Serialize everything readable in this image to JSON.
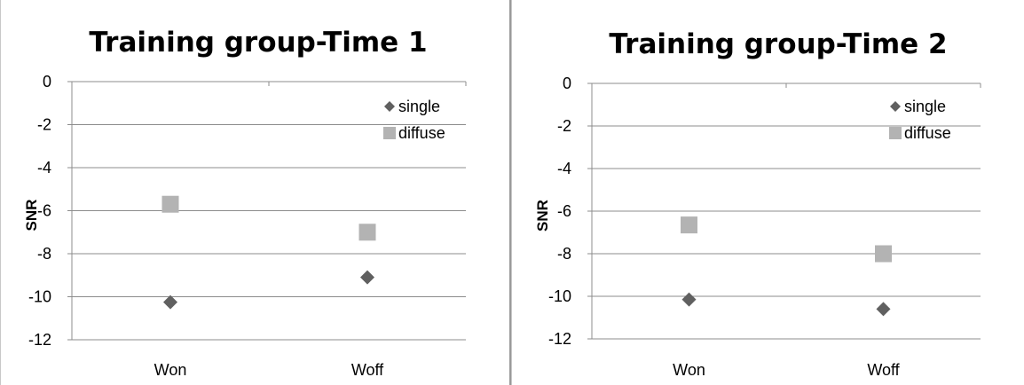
{
  "chart_data": [
    {
      "type": "scatter",
      "title": "Training group-Time 1",
      "ylabel": "SNR",
      "xlabel": "",
      "categories": [
        "Won",
        "Woff"
      ],
      "ylim": [
        -12,
        0
      ],
      "yticks": [
        0,
        -2,
        -4,
        -6,
        -8,
        -10,
        -12
      ],
      "grid": true,
      "legend_position": "top-right",
      "series": [
        {
          "name": "single",
          "marker": "diamond",
          "color": "#606060",
          "values": [
            -10.25,
            -9.1
          ]
        },
        {
          "name": "diffuse",
          "marker": "square",
          "color": "#b3b3b3",
          "values": [
            -5.7,
            -7.0
          ]
        }
      ]
    },
    {
      "type": "scatter",
      "title": "Training group-Time 2",
      "ylabel": "SNR",
      "xlabel": "",
      "categories": [
        "Won",
        "Woff"
      ],
      "ylim": [
        -12,
        0
      ],
      "yticks": [
        0,
        -2,
        -4,
        -6,
        -8,
        -10,
        -12
      ],
      "grid": true,
      "legend_position": "top-right",
      "series": [
        {
          "name": "single",
          "marker": "diamond",
          "color": "#606060",
          "values": [
            -10.15,
            -10.6
          ]
        },
        {
          "name": "diffuse",
          "marker": "square",
          "color": "#b3b3b3",
          "values": [
            -6.65,
            -8.0
          ]
        }
      ]
    }
  ]
}
